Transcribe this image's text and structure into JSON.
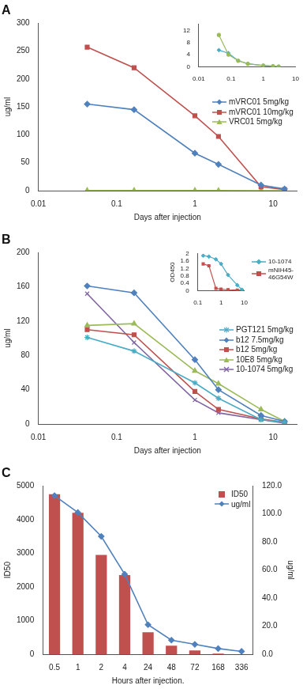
{
  "chart_data": [
    {
      "type": "line",
      "title": "A",
      "x_label": "Days after injection",
      "y_label": "ug/ml",
      "log": "x",
      "grid": false,
      "legend": "right",
      "x": [
        0.042,
        0.167,
        1,
        2,
        7,
        14
      ],
      "xlim": [
        0.01,
        20
      ],
      "xticks": [
        0.01,
        0.1,
        1,
        10
      ],
      "ylim": [
        0,
        300
      ],
      "yticks": [
        0,
        50,
        100,
        150,
        200,
        250,
        300
      ],
      "series": [
        {
          "name": "mVRC01 5mg/kg",
          "color": "#4F81BD",
          "marker": "diamond",
          "values": [
            155,
            145,
            67,
            47,
            10,
            3
          ]
        },
        {
          "name": "mVRC01 10mg/kg",
          "color": "#C0504D",
          "marker": "square",
          "values": [
            257,
            220,
            134,
            97,
            7,
            2
          ]
        },
        {
          "name": "VRC01 5mg/kg",
          "color": "#9BBB59",
          "marker": "triangle",
          "values": [
            0.4,
            0.3,
            0.3,
            0.2,
            0.1,
            0.1
          ]
        }
      ]
    },
    {
      "type": "line",
      "log": "x",
      "grid": false,
      "x": [
        0.042,
        0.083,
        0.167,
        0.333,
        1,
        2,
        3
      ],
      "xlim": [
        0.01,
        10
      ],
      "xticks": [
        0.01,
        0.1,
        1,
        10
      ],
      "ylim": [
        0,
        14
      ],
      "yticks": [
        0,
        4,
        8,
        12
      ],
      "series": [
        {
          "color": "#9BBB59",
          "marker": "circle",
          "values": [
            10.5,
            4,
            2,
            1,
            0.4,
            0.2,
            0.1
          ]
        },
        {
          "color": "#4BACC6",
          "marker": "diamond",
          "values": [
            5.5,
            4.5,
            2,
            1,
            0.4,
            0.2,
            0.1
          ]
        }
      ]
    },
    {
      "type": "line",
      "title": "B",
      "x_label": "Days after injection",
      "y_label": "ug/ml",
      "log": "x",
      "grid": false,
      "legend": "right",
      "x": [
        0.042,
        0.167,
        1,
        2,
        7,
        14
      ],
      "xlim": [
        0.01,
        20
      ],
      "xticks": [
        0.01,
        0.1,
        1,
        10
      ],
      "ylim": [
        0,
        200
      ],
      "yticks": [
        0,
        40,
        80,
        120,
        160,
        200
      ],
      "series": [
        {
          "name": "PGT121 5mg/kg",
          "color": "#4BACC6",
          "marker": "star",
          "values": [
            101,
            85,
            48,
            30,
            5,
            2
          ]
        },
        {
          "name": "b12 7.5mg/kg",
          "color": "#4F81BD",
          "marker": "diamond",
          "values": [
            161,
            153,
            75,
            40,
            10,
            3
          ]
        },
        {
          "name": "b12 5mg/kg",
          "color": "#C0504D",
          "marker": "square",
          "values": [
            110,
            104,
            38,
            17,
            6,
            2
          ]
        },
        {
          "name": "10E8 5mg/kg",
          "color": "#9BBB59",
          "marker": "triangle",
          "values": [
            115,
            117,
            62,
            47,
            17,
            3
          ]
        },
        {
          "name": "10-1074 5mg/kg",
          "color": "#8064A2",
          "marker": "x",
          "values": [
            152,
            95,
            28,
            13,
            5,
            1
          ]
        }
      ]
    },
    {
      "type": "line",
      "y_label": "OD450",
      "log": "x",
      "grid": false,
      "legend": "upper right",
      "x": [
        0.17,
        0.3,
        0.6,
        1,
        2,
        5,
        8
      ],
      "xlim": [
        0.1,
        10
      ],
      "xticks": [
        0.1,
        1,
        10
      ],
      "ylim": [
        0,
        2
      ],
      "yticks": [
        0,
        0.4,
        0.8,
        1.2,
        1.6,
        2
      ],
      "series": [
        {
          "name": "10-1074",
          "color": "#4BACC6",
          "marker": "diamond",
          "values": [
            1.9,
            1.85,
            1.7,
            1.45,
            0.85,
            0.3,
            0.05
          ]
        },
        {
          "name": "mNIH45-46G54W",
          "color": "#C0504D",
          "marker": "square",
          "values": [
            1.45,
            1.35,
            0.12,
            0.08,
            0.05,
            0.03,
            0.02
          ]
        }
      ]
    },
    {
      "type": "bar",
      "title": "C",
      "x_label": "Hours after injection.",
      "y_label": "ID50",
      "y2_label": "ug/ml",
      "grid": false,
      "legend": "upper right",
      "categories": [
        "0.5",
        "1",
        "2",
        "4",
        "24",
        "48",
        "72",
        "168",
        "336"
      ],
      "ylim": [
        0,
        5000
      ],
      "yticks": [
        0,
        1000,
        2000,
        3000,
        4000,
        5000
      ],
      "y2lim": [
        0,
        120
      ],
      "y2ticks": [
        {
          "value": 0,
          "label": "0.0"
        },
        {
          "value": 20,
          "label": "20.0"
        },
        {
          "value": 40,
          "label": "40.0"
        },
        {
          "value": 60,
          "label": "60.0"
        },
        {
          "value": 80,
          "label": "80.0"
        },
        {
          "value": 100,
          "label": "100.0"
        },
        {
          "value": 120,
          "label": "120.0"
        }
      ],
      "series": [
        {
          "name": "ID50",
          "type": "bar",
          "color": "#C0504D",
          "values": [
            4750,
            4200,
            2950,
            2350,
            650,
            250,
            110,
            20,
            0
          ]
        },
        {
          "name": "ug/ml",
          "type": "line",
          "axis": "y2",
          "color": "#4F81BD",
          "marker": "diamond",
          "values": [
            113,
            101,
            84,
            57,
            21,
            10,
            7,
            4,
            2
          ]
        }
      ]
    }
  ]
}
